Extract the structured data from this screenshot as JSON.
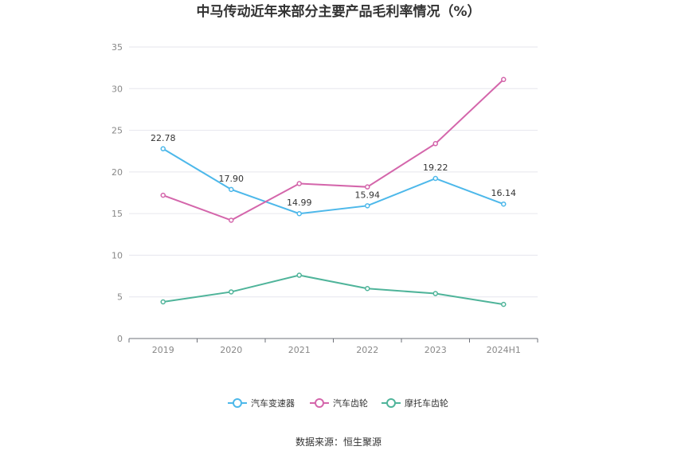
{
  "chart_data": {
    "type": "line",
    "title": "中马传动近年来部分主要产品毛利率情况（%）",
    "categories": [
      "2019",
      "2020",
      "2021",
      "2022",
      "2023",
      "2024H1"
    ],
    "ylim": [
      0,
      35
    ],
    "yticks": [
      0,
      5,
      10,
      15,
      20,
      25,
      30,
      35
    ],
    "grid": true,
    "legend_position": "bottom",
    "series": [
      {
        "name": "汽车变速器",
        "color": "#4db8ea",
        "values": [
          22.78,
          17.9,
          14.99,
          15.94,
          19.22,
          16.14
        ],
        "labels": [
          "22.78",
          "17.90",
          "14.99",
          "15.94",
          "19.22",
          "16.14"
        ]
      },
      {
        "name": "汽车齿轮",
        "color": "#d466ab",
        "values": [
          17.2,
          14.2,
          18.6,
          18.2,
          23.4,
          31.1
        ]
      },
      {
        "name": "摩托车齿轮",
        "color": "#4fb49a",
        "values": [
          4.4,
          5.6,
          7.6,
          6.0,
          5.4,
          4.1
        ]
      }
    ]
  },
  "source": "数据来源：恒生聚源"
}
